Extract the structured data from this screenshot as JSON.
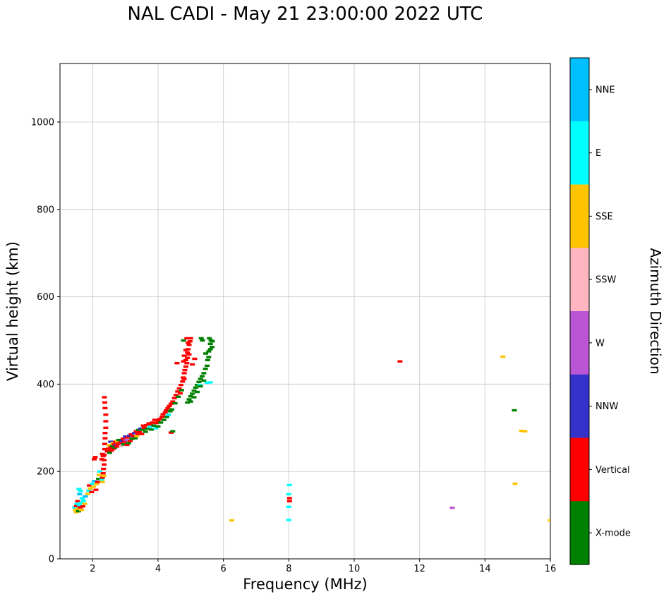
{
  "chart_data": {
    "type": "scatter",
    "title": "NAL CADI - May 21 23:00:00 2022 UTC",
    "xlabel": "Frequency (MHz)",
    "ylabel": "Virtual height (km)",
    "legend_title": "Azimuth Direction",
    "xlim": [
      1,
      16
    ],
    "ylim": [
      0,
      1134
    ],
    "xticks": [
      2,
      4,
      6,
      8,
      10,
      12,
      14,
      16
    ],
    "yticks": [
      0,
      200,
      400,
      600,
      800,
      1000
    ],
    "grid": true,
    "legend_position": "right-colorbar",
    "categories": [
      {
        "key": "NNE",
        "label": "NNE",
        "color": "#00BFFF"
      },
      {
        "key": "E",
        "label": "E",
        "color": "#00FFFF"
      },
      {
        "key": "SSE",
        "label": "SSE",
        "color": "#FFC400"
      },
      {
        "key": "SSW",
        "label": "SSW",
        "color": "#FFB6C1"
      },
      {
        "key": "W",
        "label": "W",
        "color": "#BA55D3"
      },
      {
        "key": "NNW",
        "label": "NNW",
        "color": "#3333CC"
      },
      {
        "key": "V",
        "label": "Vertical",
        "color": "#FF0000"
      },
      {
        "key": "X",
        "label": "X-mode",
        "color": "#008000"
      }
    ],
    "points": [
      [
        1.45,
        118,
        "E"
      ],
      [
        1.47,
        112,
        "SSE"
      ],
      [
        1.5,
        121,
        "V"
      ],
      [
        1.5,
        107,
        "SSE"
      ],
      [
        1.52,
        126,
        "E"
      ],
      [
        1.54,
        132,
        "V"
      ],
      [
        1.55,
        114,
        "SSE"
      ],
      [
        1.57,
        109,
        "X"
      ],
      [
        1.58,
        160,
        "E"
      ],
      [
        1.6,
        122,
        "E"
      ],
      [
        1.6,
        148,
        "NNE"
      ],
      [
        1.62,
        118,
        "V"
      ],
      [
        1.63,
        155,
        "E"
      ],
      [
        1.65,
        128,
        "E"
      ],
      [
        1.66,
        112,
        "SSE"
      ],
      [
        1.68,
        139,
        "E"
      ],
      [
        1.7,
        120,
        "V"
      ],
      [
        1.72,
        133,
        "E"
      ],
      [
        1.75,
        126,
        "SSE"
      ],
      [
        1.78,
        143,
        "NNE"
      ],
      [
        1.85,
        149,
        "SSE"
      ],
      [
        1.88,
        156,
        "E"
      ],
      [
        1.9,
        168,
        "V"
      ],
      [
        1.93,
        161,
        "SSE"
      ],
      [
        1.97,
        153,
        "V"
      ],
      [
        2.0,
        172,
        "E"
      ],
      [
        2.02,
        165,
        "SSE"
      ],
      [
        2.05,
        178,
        "NNE"
      ],
      [
        2.05,
        228,
        "V"
      ],
      [
        2.08,
        233,
        "V"
      ],
      [
        2.1,
        158,
        "V"
      ],
      [
        2.12,
        171,
        "SSE"
      ],
      [
        2.15,
        176,
        "V"
      ],
      [
        2.18,
        183,
        "X"
      ],
      [
        2.2,
        192,
        "SSE"
      ],
      [
        2.22,
        200,
        "E"
      ],
      [
        2.28,
        181,
        "E"
      ],
      [
        2.28,
        228,
        "V"
      ],
      [
        2.3,
        176,
        "SSE"
      ],
      [
        2.3,
        186,
        "V"
      ],
      [
        2.3,
        240,
        "V"
      ],
      [
        2.32,
        196,
        "V"
      ],
      [
        2.32,
        235,
        "V"
      ],
      [
        2.33,
        206,
        "V"
      ],
      [
        2.34,
        190,
        "SSE"
      ],
      [
        2.35,
        216,
        "V"
      ],
      [
        2.35,
        226,
        "V"
      ],
      [
        2.35,
        238,
        "V"
      ],
      [
        2.36,
        370,
        "V"
      ],
      [
        2.37,
        251,
        "V"
      ],
      [
        2.37,
        263,
        "V"
      ],
      [
        2.37,
        358,
        "V"
      ],
      [
        2.38,
        276,
        "V"
      ],
      [
        2.38,
        288,
        "V"
      ],
      [
        2.38,
        345,
        "V"
      ],
      [
        2.4,
        300,
        "V"
      ],
      [
        2.4,
        315,
        "V"
      ],
      [
        2.4,
        330,
        "V"
      ],
      [
        2.45,
        246,
        "V"
      ],
      [
        2.48,
        252,
        "V"
      ],
      [
        2.5,
        260,
        "SSE"
      ],
      [
        2.52,
        243,
        "X"
      ],
      [
        2.55,
        255,
        "V"
      ],
      [
        2.55,
        268,
        "NNW"
      ],
      [
        2.58,
        248,
        "V"
      ],
      [
        2.6,
        258,
        "X"
      ],
      [
        2.62,
        265,
        "SSE"
      ],
      [
        2.64,
        252,
        "V"
      ],
      [
        2.66,
        262,
        "V"
      ],
      [
        2.68,
        255,
        "X"
      ],
      [
        2.7,
        268,
        "V"
      ],
      [
        2.72,
        260,
        "NNW"
      ],
      [
        2.74,
        257,
        "V"
      ],
      [
        2.76,
        270,
        "SSE"
      ],
      [
        2.78,
        262,
        "V"
      ],
      [
        2.8,
        272,
        "X"
      ],
      [
        2.85,
        266,
        "V"
      ],
      [
        2.88,
        258,
        "SSW"
      ],
      [
        2.9,
        270,
        "NNW"
      ],
      [
        2.93,
        275,
        "V"
      ],
      [
        2.95,
        262,
        "X"
      ],
      [
        2.98,
        268,
        "V"
      ],
      [
        3.0,
        280,
        "NNW"
      ],
      [
        3.03,
        272,
        "W"
      ],
      [
        3.05,
        261,
        "V"
      ],
      [
        3.08,
        278,
        "V"
      ],
      [
        3.1,
        265,
        "X"
      ],
      [
        3.13,
        282,
        "NNW"
      ],
      [
        3.15,
        270,
        "V"
      ],
      [
        3.18,
        285,
        "V"
      ],
      [
        3.2,
        275,
        "X"
      ],
      [
        3.25,
        281,
        "V"
      ],
      [
        3.28,
        288,
        "NNW"
      ],
      [
        3.3,
        276,
        "X"
      ],
      [
        3.33,
        292,
        "V"
      ],
      [
        3.35,
        281,
        "SSE"
      ],
      [
        3.38,
        286,
        "V"
      ],
      [
        3.4,
        295,
        "X"
      ],
      [
        3.43,
        290,
        "V"
      ],
      [
        3.47,
        298,
        "NNW"
      ],
      [
        3.5,
        286,
        "V"
      ],
      [
        3.53,
        296,
        "X"
      ],
      [
        3.55,
        305,
        "V"
      ],
      [
        3.58,
        300,
        "V"
      ],
      [
        3.62,
        291,
        "X"
      ],
      [
        3.65,
        306,
        "V"
      ],
      [
        3.68,
        298,
        "X"
      ],
      [
        3.72,
        310,
        "V"
      ],
      [
        3.75,
        302,
        "E"
      ],
      [
        3.78,
        308,
        "V"
      ],
      [
        3.8,
        296,
        "X"
      ],
      [
        3.83,
        312,
        "V"
      ],
      [
        3.87,
        305,
        "X"
      ],
      [
        3.9,
        318,
        "V"
      ],
      [
        3.93,
        299,
        "E"
      ],
      [
        3.95,
        311,
        "V"
      ],
      [
        4.0,
        315,
        "V"
      ],
      [
        4.0,
        303,
        "X"
      ],
      [
        4.05,
        320,
        "V"
      ],
      [
        4.08,
        312,
        "X"
      ],
      [
        4.12,
        325,
        "V"
      ],
      [
        4.15,
        331,
        "V"
      ],
      [
        4.18,
        318,
        "X"
      ],
      [
        4.22,
        335,
        "V"
      ],
      [
        4.25,
        340,
        "V"
      ],
      [
        4.27,
        325,
        "X"
      ],
      [
        4.3,
        345,
        "V"
      ],
      [
        4.32,
        330,
        "E"
      ],
      [
        4.35,
        350,
        "V"
      ],
      [
        4.37,
        338,
        "X"
      ],
      [
        4.4,
        289,
        "V"
      ],
      [
        4.4,
        355,
        "V"
      ],
      [
        4.42,
        342,
        "X"
      ],
      [
        4.45,
        292,
        "X"
      ],
      [
        4.45,
        360,
        "V"
      ],
      [
        4.5,
        368,
        "V"
      ],
      [
        4.52,
        356,
        "X"
      ],
      [
        4.55,
        375,
        "V"
      ],
      [
        4.58,
        448,
        "V"
      ],
      [
        4.6,
        383,
        "V"
      ],
      [
        4.62,
        371,
        "X"
      ],
      [
        4.65,
        390,
        "V"
      ],
      [
        4.68,
        379,
        "V"
      ],
      [
        4.7,
        398,
        "V"
      ],
      [
        4.72,
        386,
        "X"
      ],
      [
        4.75,
        406,
        "V"
      ],
      [
        4.77,
        415,
        "V"
      ],
      [
        4.8,
        412,
        "V"
      ],
      [
        4.8,
        425,
        "V"
      ],
      [
        4.78,
        452,
        "V"
      ],
      [
        4.78,
        500,
        "X"
      ],
      [
        4.8,
        465,
        "V"
      ],
      [
        4.82,
        432,
        "V"
      ],
      [
        4.85,
        440,
        "V"
      ],
      [
        4.85,
        455,
        "V"
      ],
      [
        4.85,
        478,
        "V"
      ],
      [
        4.88,
        448,
        "V"
      ],
      [
        4.88,
        505,
        "V"
      ],
      [
        4.9,
        460,
        "V"
      ],
      [
        4.9,
        472,
        "V"
      ],
      [
        4.92,
        480,
        "V"
      ],
      [
        4.92,
        495,
        "V"
      ],
      [
        4.95,
        468,
        "V"
      ],
      [
        4.95,
        490,
        "V"
      ],
      [
        4.98,
        498,
        "V"
      ],
      [
        5.0,
        505,
        "V"
      ],
      [
        4.9,
        358,
        "X"
      ],
      [
        4.95,
        365,
        "X"
      ],
      [
        5.0,
        372,
        "X"
      ],
      [
        5.0,
        360,
        "X"
      ],
      [
        5.05,
        378,
        "X"
      ],
      [
        5.05,
        445,
        "V"
      ],
      [
        5.1,
        385,
        "X"
      ],
      [
        5.1,
        370,
        "X"
      ],
      [
        5.12,
        458,
        "V"
      ],
      [
        5.15,
        392,
        "X"
      ],
      [
        5.2,
        398,
        "X"
      ],
      [
        5.2,
        382,
        "X"
      ],
      [
        5.25,
        405,
        "X"
      ],
      [
        5.28,
        398,
        "E"
      ],
      [
        5.3,
        412,
        "X"
      ],
      [
        5.3,
        395,
        "X"
      ],
      [
        5.32,
        505,
        "X"
      ],
      [
        5.35,
        418,
        "X"
      ],
      [
        5.36,
        500,
        "X"
      ],
      [
        5.4,
        425,
        "X"
      ],
      [
        5.4,
        408,
        "X"
      ],
      [
        5.45,
        435,
        "X"
      ],
      [
        5.46,
        470,
        "X"
      ],
      [
        5.5,
        403,
        "E"
      ],
      [
        5.5,
        442,
        "X"
      ],
      [
        5.52,
        455,
        "X"
      ],
      [
        5.55,
        462,
        "X"
      ],
      [
        5.55,
        475,
        "X"
      ],
      [
        5.57,
        505,
        "X"
      ],
      [
        5.6,
        404,
        "E"
      ],
      [
        5.6,
        480,
        "X"
      ],
      [
        5.6,
        492,
        "X"
      ],
      [
        5.62,
        500,
        "X"
      ],
      [
        5.65,
        485,
        "X"
      ],
      [
        5.66,
        498,
        "X"
      ],
      [
        6.25,
        88,
        "SSE"
      ],
      [
        8.0,
        89,
        "E"
      ],
      [
        8.0,
        119,
        "E"
      ],
      [
        8.02,
        132,
        "V"
      ],
      [
        8.02,
        139,
        "V"
      ],
      [
        8.0,
        148,
        "E"
      ],
      [
        8.02,
        169,
        "E"
      ],
      [
        11.4,
        452,
        "V"
      ],
      [
        13.0,
        117,
        "W"
      ],
      [
        14.55,
        463,
        "SSE"
      ],
      [
        14.9,
        340,
        "X"
      ],
      [
        14.92,
        172,
        "SSE"
      ],
      [
        15.12,
        293,
        "SSE"
      ],
      [
        15.22,
        292,
        "SSE"
      ],
      [
        16.0,
        88,
        "SSE"
      ]
    ]
  }
}
